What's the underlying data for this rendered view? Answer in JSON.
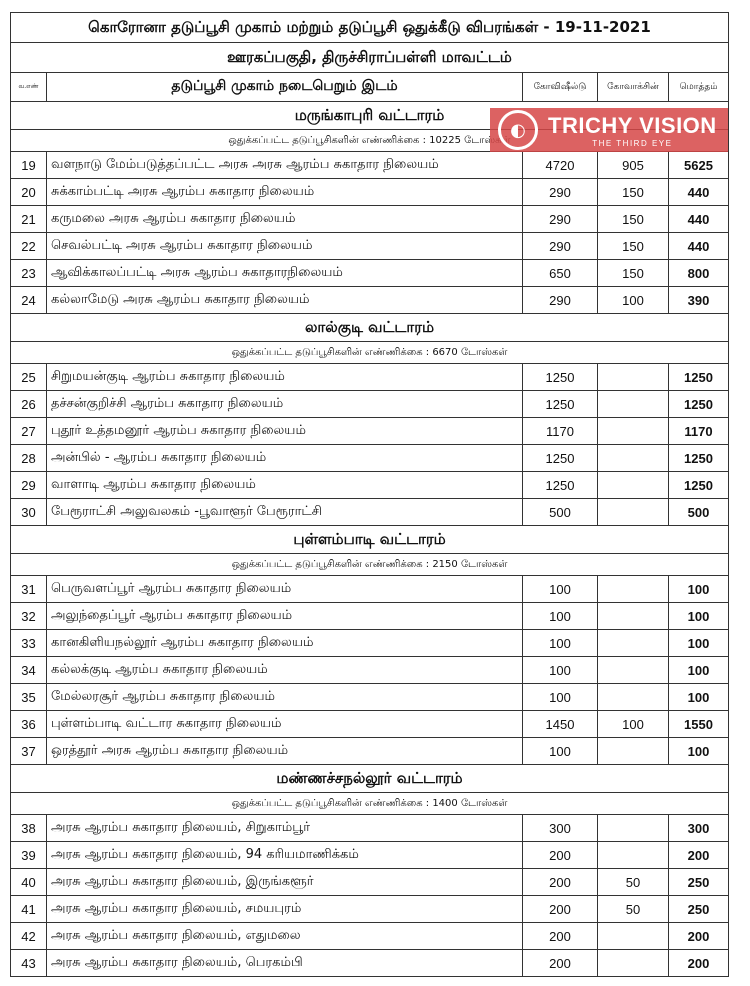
{
  "title": "கொரோனா தடுப்பூசி முகாம் மற்றும் தடுப்பூசி ஒதுக்கீடு விபரங்கள் - 19-11-2021",
  "subtitle": "ஊரகப்பகுதி, திருச்சிராப்பள்ளி மாவட்டம்",
  "columns": {
    "num": "வ.எண்",
    "place": "தடுப்பூசி முகாம் நடைபெறும் இடம்",
    "covishield": "கோவிஷீல்டு",
    "covaxin": "கோவாக்சின்",
    "total": "மொத்தம்"
  },
  "watermark": {
    "brand": "TRICHY VISION",
    "tagline": "THE THIRD EYE",
    "color": "#d64646"
  },
  "sections": [
    {
      "name": "மருங்காபுரி வட்டாரம்",
      "note": "ஒதுக்கப்பட்ட தடுப்பூசிகளின் எண்ணிக்கை : 10225 டோஸ்கள்",
      "rows": [
        {
          "no": "19",
          "place": "வளநாடு மேம்படுத்தப்பட்ட அரசு அரசு ஆரம்ப சுகாதார நிலையம்",
          "covishield": "4720",
          "covaxin": "905",
          "total": "5625"
        },
        {
          "no": "20",
          "place": "சுக்காம்பட்டி அரசு ஆரம்ப சுகாதார நிலையம்",
          "covishield": "290",
          "covaxin": "150",
          "total": "440"
        },
        {
          "no": "21",
          "place": "கருமலை அரசு ஆரம்ப சுகாதார நிலையம்",
          "covishield": "290",
          "covaxin": "150",
          "total": "440"
        },
        {
          "no": "22",
          "place": "செவல்பட்டி அரசு ஆரம்ப சுகாதார நிலையம்",
          "covishield": "290",
          "covaxin": "150",
          "total": "440"
        },
        {
          "no": "23",
          "place": "ஆவிக்காலப்பட்டி அரசு ஆரம்ப சுகாதாரநிலையம்",
          "covishield": "650",
          "covaxin": "150",
          "total": "800"
        },
        {
          "no": "24",
          "place": "கல்லாமேடு அரசு ஆரம்ப சுகாதார நிலையம்",
          "covishield": "290",
          "covaxin": "100",
          "total": "390"
        }
      ]
    },
    {
      "name": "லால்குடி வட்டாரம்",
      "note": "ஒதுக்கப்பட்ட தடுப்பூசிகளின் எண்ணிக்கை : 6670 டோஸ்கள்",
      "rows": [
        {
          "no": "25",
          "place": "சிறுமயன்குடி ஆரம்ப சுகாதார நிலையம்",
          "covishield": "1250",
          "covaxin": "",
          "total": "1250"
        },
        {
          "no": "26",
          "place": "தச்சன்குறிச்சி ஆரம்ப சுகாதார நிலையம்",
          "covishield": "1250",
          "covaxin": "",
          "total": "1250"
        },
        {
          "no": "27",
          "place": "புதூர் உத்தமனூர் ஆரம்ப சுகாதார நிலையம்",
          "covishield": "1170",
          "covaxin": "",
          "total": "1170"
        },
        {
          "no": "28",
          "place": "அன்பில் - ஆரம்ப சுகாதார நிலையம்",
          "covishield": "1250",
          "covaxin": "",
          "total": "1250"
        },
        {
          "no": "29",
          "place": "வாளாடி ஆரம்ப சுகாதார நிலையம்",
          "covishield": "1250",
          "covaxin": "",
          "total": "1250"
        },
        {
          "no": "30",
          "place": "பேரூராட்சி அலுவலகம் -பூவாளூர் பேரூராட்சி",
          "covishield": "500",
          "covaxin": "",
          "total": "500"
        }
      ]
    },
    {
      "name": "புள்ளம்பாடி வட்டாரம்",
      "note": "ஒதுக்கப்பட்ட தடுப்பூசிகளின் எண்ணிக்கை : 2150 டோஸ்கள்",
      "rows": [
        {
          "no": "31",
          "place": "பெருவளப்பூர் ஆரம்ப சுகாதார நிலையம்",
          "covishield": "100",
          "covaxin": "",
          "total": "100"
        },
        {
          "no": "32",
          "place": "அலுந்தைப்பூர் ஆரம்ப சுகாதார நிலையம்",
          "covishield": "100",
          "covaxin": "",
          "total": "100"
        },
        {
          "no": "33",
          "place": "கானகிளியநல்லூர் ஆரம்ப சுகாதார நிலையம்",
          "covishield": "100",
          "covaxin": "",
          "total": "100"
        },
        {
          "no": "34",
          "place": "கல்லக்குடி ஆரம்ப சுகாதார நிலையம்",
          "covishield": "100",
          "covaxin": "",
          "total": "100"
        },
        {
          "no": "35",
          "place": "மேல்லரசூர் ஆரம்ப சுகாதார நிலையம்",
          "covishield": "100",
          "covaxin": "",
          "total": "100"
        },
        {
          "no": "36",
          "place": "புள்ளம்பாடி வட்டார சுகாதார நிலையம்",
          "covishield": "1450",
          "covaxin": "100",
          "total": "1550"
        },
        {
          "no": "37",
          "place": "ஒரத்தூர் அரசு ஆரம்ப சுகாதார நிலையம்",
          "covishield": "100",
          "covaxin": "",
          "total": "100"
        }
      ]
    },
    {
      "name": "மண்ணச்சநல்லூர் வட்டாரம்",
      "note": "ஒதுக்கப்பட்ட தடுப்பூசிகளின் எண்ணிக்கை : 1400 டோஸ்கள்",
      "rows": [
        {
          "no": "38",
          "place": "அரசு ஆரம்ப சுகாதார நிலையம், சிறுகாம்பூர்",
          "covishield": "300",
          "covaxin": "",
          "total": "300"
        },
        {
          "no": "39",
          "place": "அரசு ஆரம்ப சுகாதார நிலையம், 94 கரியமாணிக்கம்",
          "covishield": "200",
          "covaxin": "",
          "total": "200"
        },
        {
          "no": "40",
          "place": "அரசு ஆரம்ப சுகாதார நிலையம், இருங்களூர்",
          "covishield": "200",
          "covaxin": "50",
          "total": "250"
        },
        {
          "no": "41",
          "place": "அரசு ஆரம்ப சுகாதார நிலையம், சமயபுரம்",
          "covishield": "200",
          "covaxin": "50",
          "total": "250"
        },
        {
          "no": "42",
          "place": "அரசு ஆரம்ப சுகாதார நிலையம், எதுமலை",
          "covishield": "200",
          "covaxin": "",
          "total": "200"
        },
        {
          "no": "43",
          "place": "அரசு ஆரம்ப சுகாதார நிலையம், பெரகம்பி",
          "covishield": "200",
          "covaxin": "",
          "total": "200"
        }
      ]
    }
  ]
}
